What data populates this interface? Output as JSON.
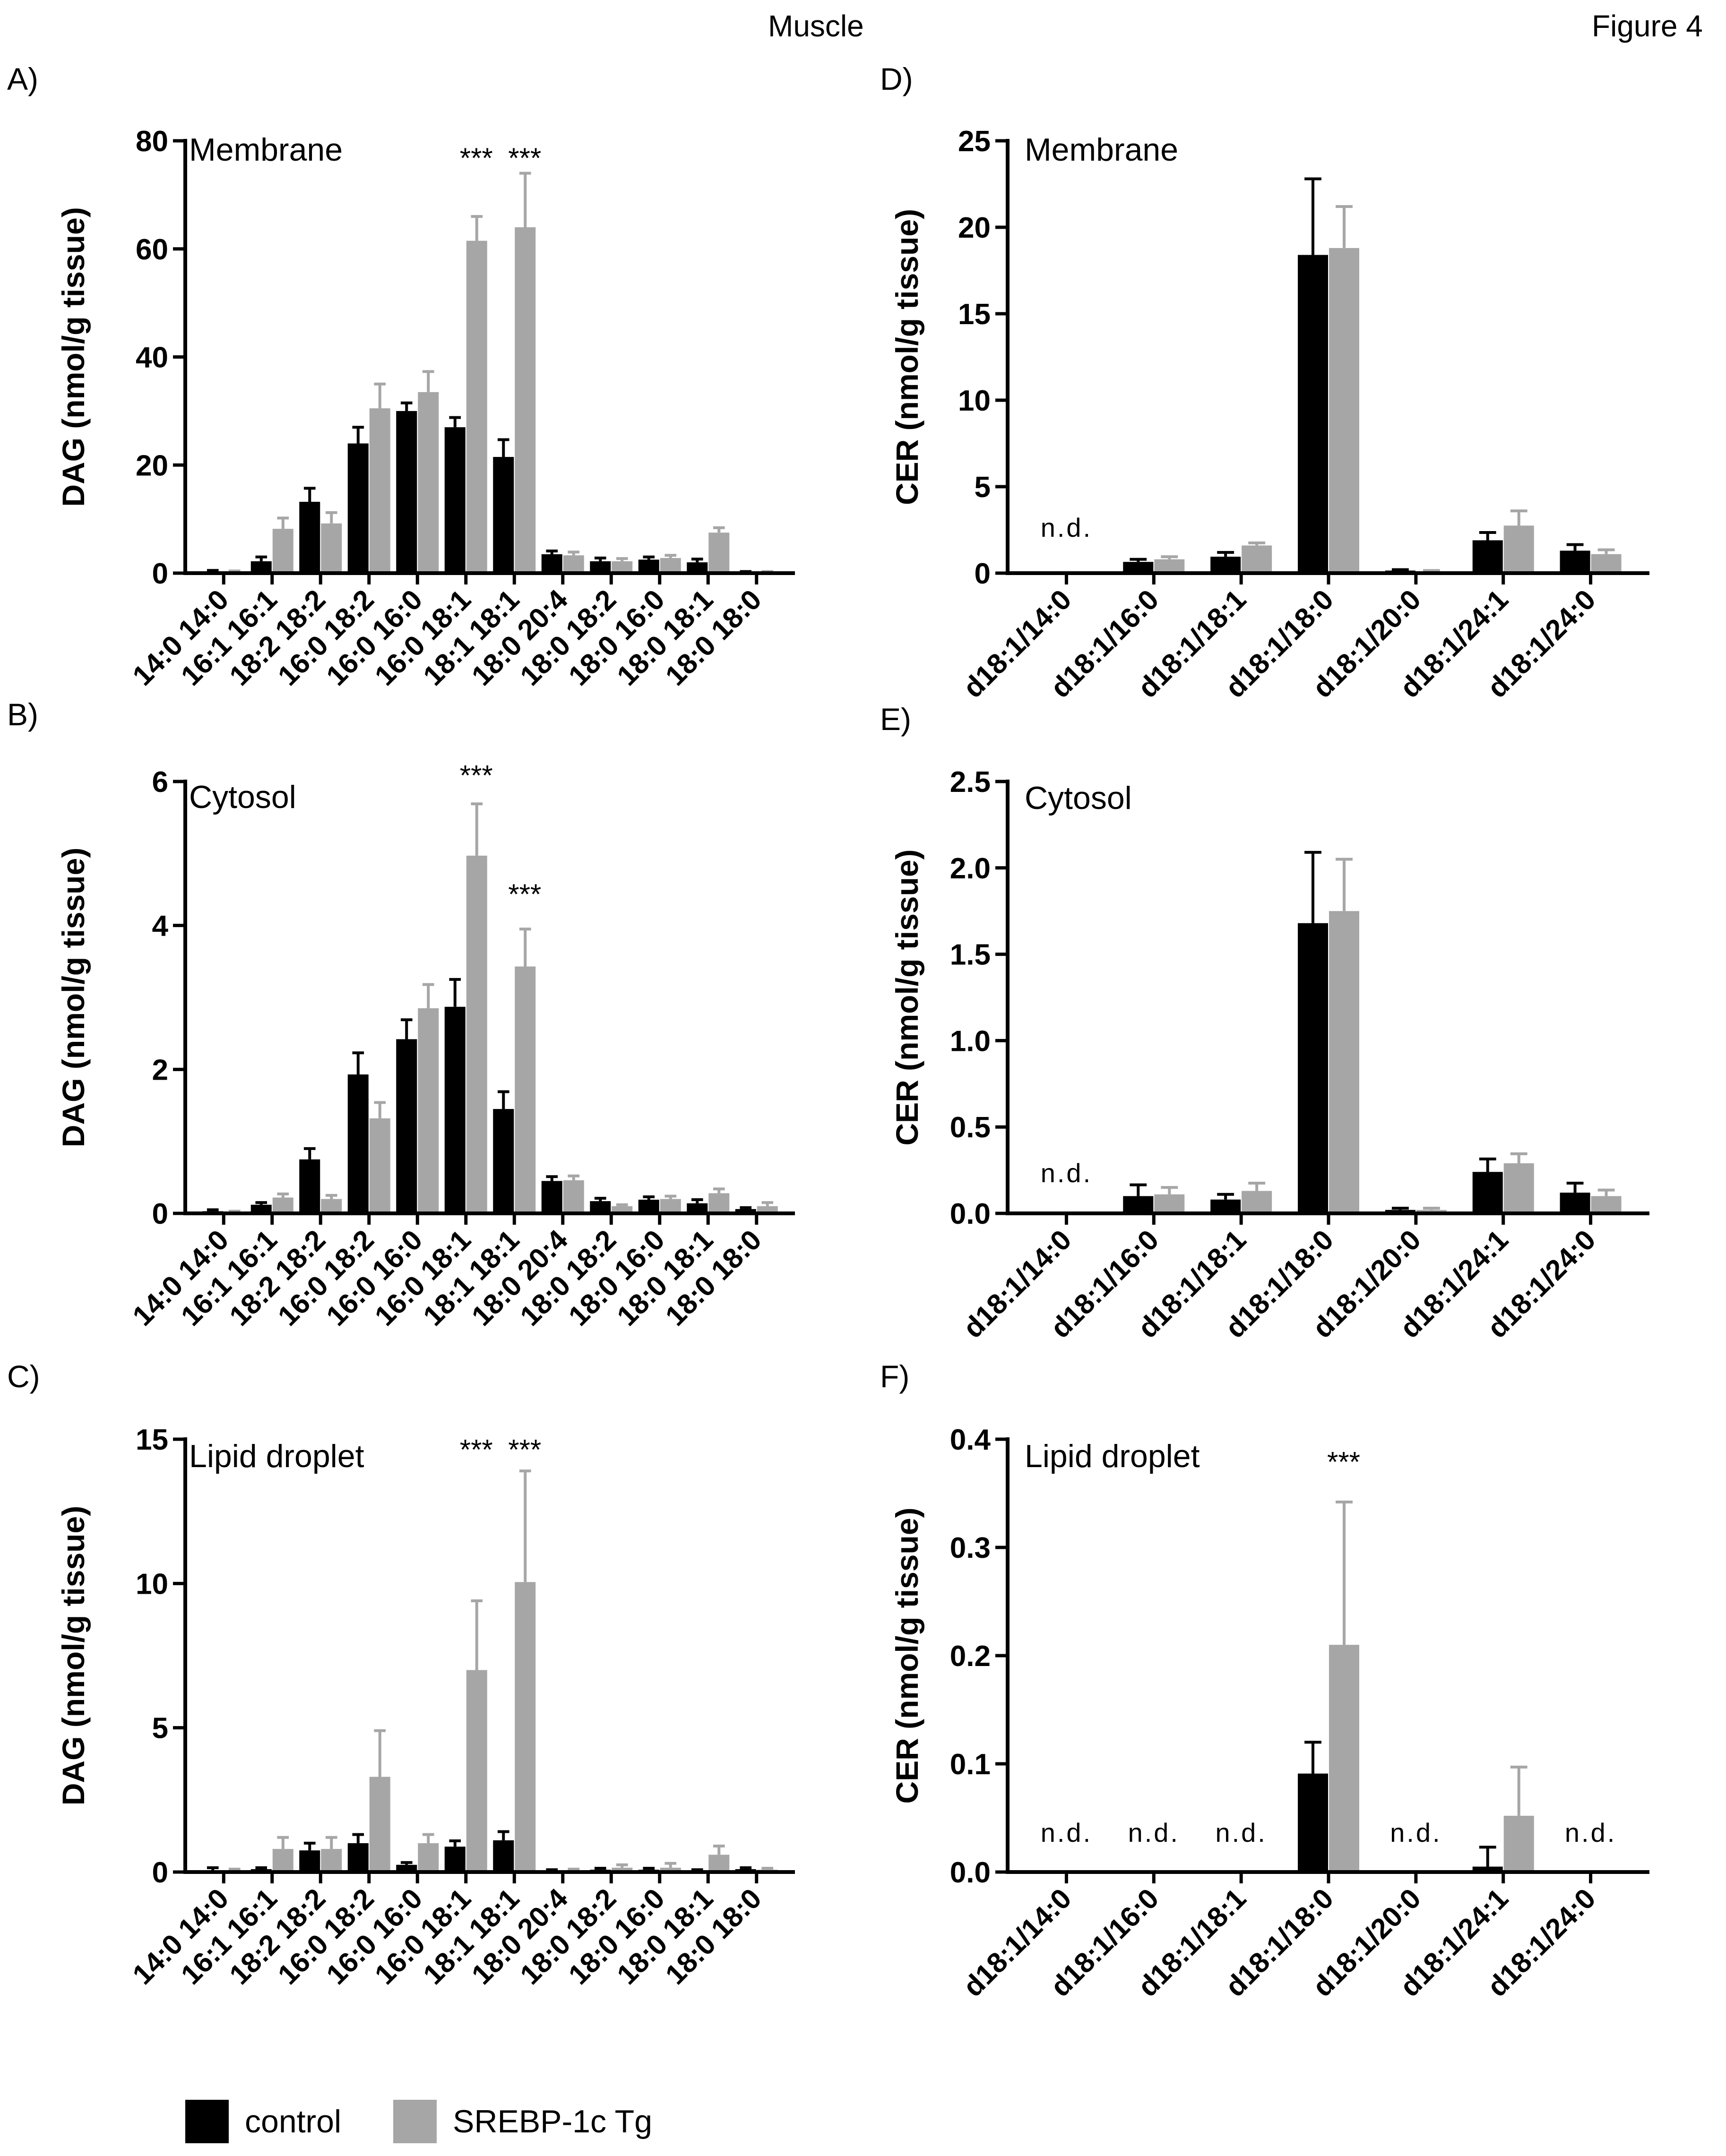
{
  "header": {
    "center_title": "Muscle",
    "figure_label": "Figure 4"
  },
  "legend": [
    {
      "label": "control",
      "color": "#000000"
    },
    {
      "label": "SREBP-1c Tg",
      "color": "#a6a6a6"
    }
  ],
  "colors": {
    "control": "#000000",
    "srebp": "#a6a6a6",
    "axis": "#000000"
  },
  "chart_data": [
    {
      "id": "A",
      "panel_label": "A)",
      "type": "bar",
      "subtitle": "Membrane",
      "ylabel": "DAG (nmol/g tissue)",
      "ylim": [
        0,
        80
      ],
      "ticks": [
        0,
        20,
        40,
        60,
        80
      ],
      "tick_labels": [
        "0",
        "20",
        "40",
        "60",
        "80"
      ],
      "categories": [
        "14:0 14:0",
        "16:1 16:1",
        "18:2 18:2",
        "16:0 18:2",
        "16:0 16:0",
        "16:0 18:1",
        "18:1 18:1",
        "18:0 20:4",
        "18:0 18:2",
        "18:0 16:0",
        "18:0 18:1",
        "18:0 18:0"
      ],
      "series": [
        {
          "name": "control",
          "values": [
            0.3,
            2.2,
            13.2,
            24.0,
            30.0,
            27.0,
            21.5,
            3.5,
            2.2,
            2.5,
            2.0,
            0.2
          ],
          "errors": [
            0.2,
            0.8,
            2.5,
            3.0,
            1.5,
            1.8,
            3.2,
            0.6,
            0.6,
            0.5,
            0.6,
            0.1
          ]
        },
        {
          "name": "SREBP-1c Tg",
          "values": [
            0.3,
            8.2,
            9.2,
            30.5,
            33.5,
            61.5,
            64.0,
            3.3,
            2.2,
            2.8,
            7.5,
            0.2
          ],
          "errors": [
            0.1,
            2.0,
            2.0,
            4.5,
            3.8,
            4.5,
            10.0,
            0.6,
            0.5,
            0.5,
            0.9,
            0.1
          ]
        }
      ],
      "annotations": [
        {
          "text": "***",
          "category": "16:0 18:1",
          "y": 75
        },
        {
          "text": "***",
          "category": "18:1 18:1",
          "y": 75
        }
      ]
    },
    {
      "id": "B",
      "panel_label": "B)",
      "type": "bar",
      "subtitle": "Cytosol",
      "ylabel": "DAG (nmol/g tissue)",
      "ylim": [
        0,
        6
      ],
      "ticks": [
        0,
        2,
        4,
        6
      ],
      "tick_labels": [
        "0",
        "2",
        "4",
        "6"
      ],
      "categories": [
        "14:0 14:0",
        "16:1 16:1",
        "18:2 18:2",
        "16:0 18:2",
        "16:0 16:0",
        "16:0 18:1",
        "18:1 18:1",
        "18:0 20:4",
        "18:0 18:2",
        "18:0 16:0",
        "18:0 18:1",
        "18:0 18:0"
      ],
      "series": [
        {
          "name": "control",
          "values": [
            0.03,
            0.12,
            0.75,
            1.93,
            2.42,
            2.87,
            1.45,
            0.45,
            0.17,
            0.19,
            0.14,
            0.06
          ],
          "errors": [
            0.02,
            0.03,
            0.15,
            0.3,
            0.27,
            0.38,
            0.24,
            0.06,
            0.04,
            0.04,
            0.05,
            0.02
          ]
        },
        {
          "name": "SREBP-1c Tg",
          "values": [
            0.02,
            0.22,
            0.2,
            1.32,
            2.85,
            4.97,
            3.43,
            0.46,
            0.1,
            0.2,
            0.28,
            0.1
          ],
          "errors": [
            0.01,
            0.05,
            0.05,
            0.22,
            0.33,
            0.72,
            0.52,
            0.06,
            0.02,
            0.04,
            0.06,
            0.05
          ]
        }
      ],
      "annotations": [
        {
          "text": "***",
          "category": "16:0 18:1",
          "y": 5.95
        },
        {
          "text": "***",
          "category": "18:1 18:1",
          "y": 4.3
        }
      ]
    },
    {
      "id": "C",
      "panel_label": "C)",
      "type": "bar",
      "subtitle": "Lipid droplet",
      "ylabel": "DAG (nmol/g tissue)",
      "ylim": [
        0,
        15
      ],
      "ticks": [
        0,
        5,
        10,
        15
      ],
      "tick_labels": [
        "0",
        "5",
        "10",
        "15"
      ],
      "categories": [
        "14:0 14:0",
        "16:1 16:1",
        "18:2 18:2",
        "16:0 18:2",
        "16:0 16:0",
        "16:0 18:1",
        "18:1 18:1",
        "18:0 20:4",
        "18:0 18:2",
        "18:0 16:0",
        "18:0 18:1",
        "18:0 18:0"
      ],
      "series": [
        {
          "name": "control",
          "values": [
            0.05,
            0.1,
            0.75,
            1.0,
            0.25,
            0.88,
            1.1,
            0.05,
            0.08,
            0.08,
            0.05,
            0.1
          ],
          "errors": [
            0.1,
            0.05,
            0.25,
            0.3,
            0.08,
            0.2,
            0.3,
            0.03,
            0.05,
            0.05,
            0.03,
            0.05
          ]
        },
        {
          "name": "SREBP-1c Tg",
          "values": [
            0.05,
            0.8,
            0.8,
            3.3,
            1.0,
            7.0,
            10.05,
            0.05,
            0.15,
            0.15,
            0.6,
            0.08
          ],
          "errors": [
            0.05,
            0.4,
            0.4,
            1.6,
            0.3,
            2.4,
            3.85,
            0.05,
            0.1,
            0.15,
            0.3,
            0.05
          ]
        }
      ],
      "annotations": [
        {
          "text": "***",
          "category": "16:0 18:1",
          "y": 14.3
        },
        {
          "text": "***",
          "category": "18:1 18:1",
          "y": 14.3
        }
      ]
    },
    {
      "id": "D",
      "panel_label": "D)",
      "type": "bar",
      "subtitle": "Membrane",
      "ylabel": "CER (nmol/g tissue)",
      "ylim": [
        0,
        25
      ],
      "ticks": [
        0,
        5,
        10,
        15,
        20,
        25
      ],
      "tick_labels": [
        "0",
        "5",
        "10",
        "15",
        "20",
        "25"
      ],
      "categories": [
        "d18:1/14:0",
        "d18:1/16:0",
        "d18:1/18:1",
        "d18:1/18:0",
        "d18:1/20:0",
        "d18:1/24:1",
        "d18:1/24:0"
      ],
      "series": [
        {
          "name": "control",
          "values": [
            0,
            0.65,
            0.95,
            18.4,
            0.15,
            1.9,
            1.3
          ],
          "errors": [
            0,
            0.15,
            0.25,
            4.4,
            0.05,
            0.45,
            0.35
          ]
        },
        {
          "name": "SREBP-1c Tg",
          "values": [
            0,
            0.8,
            1.6,
            18.8,
            0.1,
            2.75,
            1.1
          ],
          "errors": [
            0,
            0.15,
            0.15,
            2.4,
            0.05,
            0.85,
            0.25
          ]
        }
      ],
      "nd_labels": [
        {
          "text": "n.d.",
          "category": "d18:1/14:0",
          "y": 2.1
        }
      ]
    },
    {
      "id": "E",
      "panel_label": "E)",
      "type": "bar",
      "subtitle": "Cytosol",
      "ylabel": "CER (nmol/g tissue)",
      "ylim": [
        0,
        2.5
      ],
      "ticks": [
        0,
        0.5,
        1,
        1.5,
        2,
        2.5
      ],
      "tick_labels": [
        "0.0",
        "0.5",
        "1.0",
        "1.5",
        "2.0",
        "2.5"
      ],
      "categories": [
        "d18:1/14:0",
        "d18:1/16:0",
        "d18:1/18:1",
        "d18:1/18:0",
        "d18:1/20:0",
        "d18:1/24:1",
        "d18:1/24:0"
      ],
      "series": [
        {
          "name": "control",
          "values": [
            0,
            0.1,
            0.08,
            1.68,
            0.02,
            0.24,
            0.12
          ],
          "errors": [
            0,
            0.065,
            0.03,
            0.41,
            0.01,
            0.075,
            0.055
          ]
        },
        {
          "name": "SREBP-1c Tg",
          "values": [
            0,
            0.11,
            0.13,
            1.75,
            0.02,
            0.29,
            0.1
          ],
          "errors": [
            0,
            0.04,
            0.045,
            0.3,
            0.01,
            0.055,
            0.035
          ]
        }
      ],
      "nd_labels": [
        {
          "text": "n.d.",
          "category": "d18:1/14:0",
          "y": 0.18
        }
      ]
    },
    {
      "id": "F",
      "panel_label": "F)",
      "type": "bar",
      "subtitle": "Lipid droplet",
      "ylabel": "CER (nmol/g tissue)",
      "ylim": [
        0,
        0.4
      ],
      "ticks": [
        0,
        0.1,
        0.2,
        0.3,
        0.4
      ],
      "tick_labels": [
        "0.0",
        "0.1",
        "0.2",
        "0.3",
        "0.4"
      ],
      "categories": [
        "d18:1/14:0",
        "d18:1/16:0",
        "d18:1/18:1",
        "d18:1/18:0",
        "d18:1/20:0",
        "d18:1/24:1",
        "d18:1/24:0"
      ],
      "series": [
        {
          "name": "control",
          "values": [
            0,
            0,
            0,
            0.091,
            0,
            0.005,
            0
          ],
          "errors": [
            0,
            0,
            0,
            0.029,
            0,
            0.018,
            0
          ]
        },
        {
          "name": "SREBP-1c Tg",
          "values": [
            0,
            0,
            0,
            0.21,
            0,
            0.052,
            0
          ],
          "errors": [
            0,
            0,
            0,
            0.132,
            0,
            0.045,
            0
          ]
        }
      ],
      "annotations": [
        {
          "text": "***",
          "category": "d18:1/18:0",
          "y": 0.37
        }
      ],
      "nd_labels": [
        {
          "text": "n.d.",
          "category": "d18:1/14:0",
          "y": 0.028
        },
        {
          "text": "n.d.",
          "category": "d18:1/16:0",
          "y": 0.028
        },
        {
          "text": "n.d.",
          "category": "d18:1/18:1",
          "y": 0.028
        },
        {
          "text": "n.d.",
          "category": "d18:1/20:0",
          "y": 0.028
        },
        {
          "text": "n.d.",
          "category": "d18:1/24:0",
          "y": 0.028
        }
      ]
    }
  ]
}
